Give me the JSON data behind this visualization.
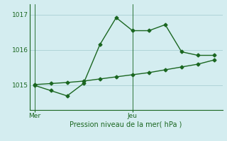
{
  "bg_color": "#d4edf0",
  "grid_color": "#aad0d4",
  "line_color": "#1a6620",
  "ylim": [
    1014.3,
    1017.3
  ],
  "yticks": [
    1015,
    1016,
    1017
  ],
  "forecast_x": [
    0,
    1,
    2,
    3,
    4,
    5,
    6,
    7,
    8,
    9,
    10,
    11
  ],
  "forecast_y": [
    1015.0,
    1014.85,
    1014.7,
    1015.05,
    1016.15,
    1016.92,
    1016.55,
    1016.55,
    1016.72,
    1015.95,
    1015.85,
    1015.85
  ],
  "trend_x": [
    0,
    1,
    2,
    3,
    4,
    5,
    6,
    7,
    8,
    9,
    10,
    11
  ],
  "trend_y": [
    1015.02,
    1015.05,
    1015.08,
    1015.12,
    1015.18,
    1015.24,
    1015.3,
    1015.36,
    1015.44,
    1015.52,
    1015.6,
    1015.72
  ],
  "xlabel": "Pression niveau de la mer( hPa )",
  "mer_x": 0,
  "jeu_x": 6,
  "xlim": [
    -0.3,
    11.5
  ],
  "marker_size": 2.5,
  "linewidth": 1.0,
  "xlabel_fontsize": 7,
  "tick_fontsize": 6.5
}
